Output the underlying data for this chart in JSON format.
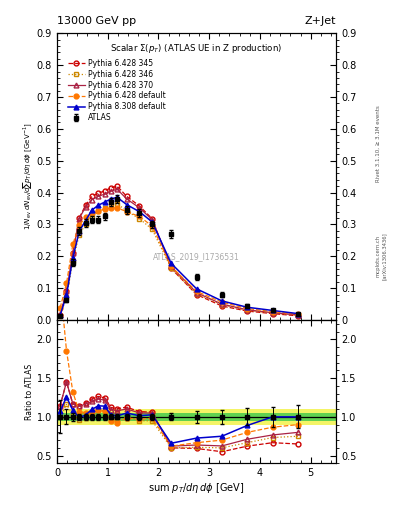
{
  "title_left": "13000 GeV pp",
  "title_right": "Z+Jet",
  "plot_title": "Scalar Σ(p_T) (ATLAS UE in Z production)",
  "watermark": "ATLAS_2019_I1736531",
  "right_label": "Rivet 3.1.10, ≥ 3.1M events",
  "arxiv_label": "[arXiv:1306.3436]",
  "mcplots_label": "mcplots.cern.ch",
  "ylim_main": [
    0,
    0.9
  ],
  "ylim_ratio": [
    0.4,
    2.25
  ],
  "yticks_main": [
    0.0,
    0.1,
    0.2,
    0.3,
    0.4,
    0.5,
    0.6,
    0.7,
    0.8,
    0.9
  ],
  "yticks_ratio": [
    0.5,
    1.0,
    1.5,
    2.0
  ],
  "xlim": [
    0,
    5.5
  ],
  "atlas_x": [
    0.0625,
    0.1875,
    0.3125,
    0.4375,
    0.5625,
    0.6875,
    0.8125,
    0.9375,
    1.0625,
    1.1875,
    1.375,
    1.625,
    1.875,
    2.25,
    2.75,
    3.25,
    3.75,
    4.25,
    4.75
  ],
  "atlas_y": [
    0.014,
    0.062,
    0.18,
    0.28,
    0.305,
    0.315,
    0.315,
    0.325,
    0.37,
    0.38,
    0.345,
    0.335,
    0.3,
    0.27,
    0.135,
    0.08,
    0.045,
    0.03,
    0.02
  ],
  "atlas_yerr": [
    0.003,
    0.006,
    0.01,
    0.012,
    0.012,
    0.012,
    0.012,
    0.012,
    0.012,
    0.012,
    0.012,
    0.012,
    0.012,
    0.012,
    0.01,
    0.007,
    0.005,
    0.004,
    0.003
  ],
  "py6_345_x": [
    0.0625,
    0.1875,
    0.3125,
    0.4375,
    0.5625,
    0.6875,
    0.8125,
    0.9375,
    1.0625,
    1.1875,
    1.375,
    1.625,
    1.875,
    2.25,
    2.75,
    3.25,
    3.75,
    4.25,
    4.75
  ],
  "py6_345_y": [
    0.016,
    0.09,
    0.21,
    0.32,
    0.36,
    0.388,
    0.398,
    0.405,
    0.415,
    0.42,
    0.388,
    0.358,
    0.318,
    0.162,
    0.08,
    0.044,
    0.028,
    0.02,
    0.013
  ],
  "py6_346_x": [
    0.0625,
    0.1875,
    0.3125,
    0.4375,
    0.5625,
    0.6875,
    0.8125,
    0.9375,
    1.0625,
    1.1875,
    1.375,
    1.625,
    1.875,
    2.25,
    2.75,
    3.25,
    3.75,
    4.25,
    4.75
  ],
  "py6_346_y": [
    0.014,
    0.072,
    0.185,
    0.268,
    0.3,
    0.328,
    0.342,
    0.35,
    0.36,
    0.365,
    0.342,
    0.318,
    0.285,
    0.162,
    0.082,
    0.048,
    0.03,
    0.022,
    0.015
  ],
  "py6_370_x": [
    0.0625,
    0.1875,
    0.3125,
    0.4375,
    0.5625,
    0.6875,
    0.8125,
    0.9375,
    1.0625,
    1.1875,
    1.375,
    1.625,
    1.875,
    2.25,
    2.75,
    3.25,
    3.75,
    4.25,
    4.75
  ],
  "py6_370_y": [
    0.016,
    0.09,
    0.21,
    0.318,
    0.355,
    0.378,
    0.388,
    0.395,
    0.405,
    0.41,
    0.38,
    0.352,
    0.315,
    0.168,
    0.086,
    0.05,
    0.032,
    0.023,
    0.016
  ],
  "py6_def_x": [
    0.0625,
    0.1875,
    0.3125,
    0.4375,
    0.5625,
    0.6875,
    0.8125,
    0.9375,
    1.0625,
    1.1875,
    1.375,
    1.625,
    1.875,
    2.25,
    2.75,
    3.25,
    3.75,
    4.25,
    4.75
  ],
  "py6_def_y": [
    0.038,
    0.115,
    0.238,
    0.298,
    0.322,
    0.335,
    0.342,
    0.348,
    0.352,
    0.352,
    0.34,
    0.325,
    0.295,
    0.168,
    0.09,
    0.056,
    0.036,
    0.026,
    0.018
  ],
  "py8_def_x": [
    0.0625,
    0.1875,
    0.3125,
    0.4375,
    0.5625,
    0.6875,
    0.8125,
    0.9375,
    1.0625,
    1.1875,
    1.375,
    1.625,
    1.875,
    2.25,
    2.75,
    3.25,
    3.75,
    4.25,
    4.75
  ],
  "py8_def_y": [
    0.015,
    0.078,
    0.195,
    0.278,
    0.312,
    0.345,
    0.36,
    0.37,
    0.38,
    0.385,
    0.362,
    0.34,
    0.308,
    0.178,
    0.098,
    0.06,
    0.04,
    0.03,
    0.02
  ],
  "color_py6_345": "#cc0000",
  "color_py6_346": "#cc8800",
  "color_py6_370": "#aa2244",
  "color_py6_def": "#ff7700",
  "color_py8_def": "#0000cc",
  "color_atlas": "#000000",
  "legend_entries": [
    "ATLAS",
    "Pythia 6.428 345",
    "Pythia 6.428 346",
    "Pythia 6.428 370",
    "Pythia 6.428 default",
    "Pythia 8.308 default"
  ],
  "band_green": "#00bb44",
  "band_yellow": "#eeee00"
}
